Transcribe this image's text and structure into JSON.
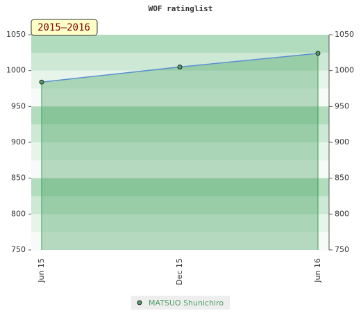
{
  "chart_data": {
    "type": "area",
    "title": "WOF ratinglist",
    "period_label": "2015–2016",
    "categories": [
      "Jun 15",
      "Dec 15",
      "Jun 16"
    ],
    "series": [
      {
        "name": "MATSUO Shunichiro",
        "color": "#5b8fd0",
        "fill_color": "#3a9a55",
        "marker_color": "#4f9e63",
        "values": [
          984,
          1005,
          1024
        ]
      }
    ],
    "ylim": [
      750,
      1050
    ],
    "yticks": [
      750,
      800,
      850,
      900,
      950,
      1000,
      1050
    ],
    "y2lim": [
      750,
      1050
    ],
    "y2ticks": [
      750,
      800,
      850,
      900,
      950,
      1000,
      1050
    ],
    "legend": "bottom"
  }
}
